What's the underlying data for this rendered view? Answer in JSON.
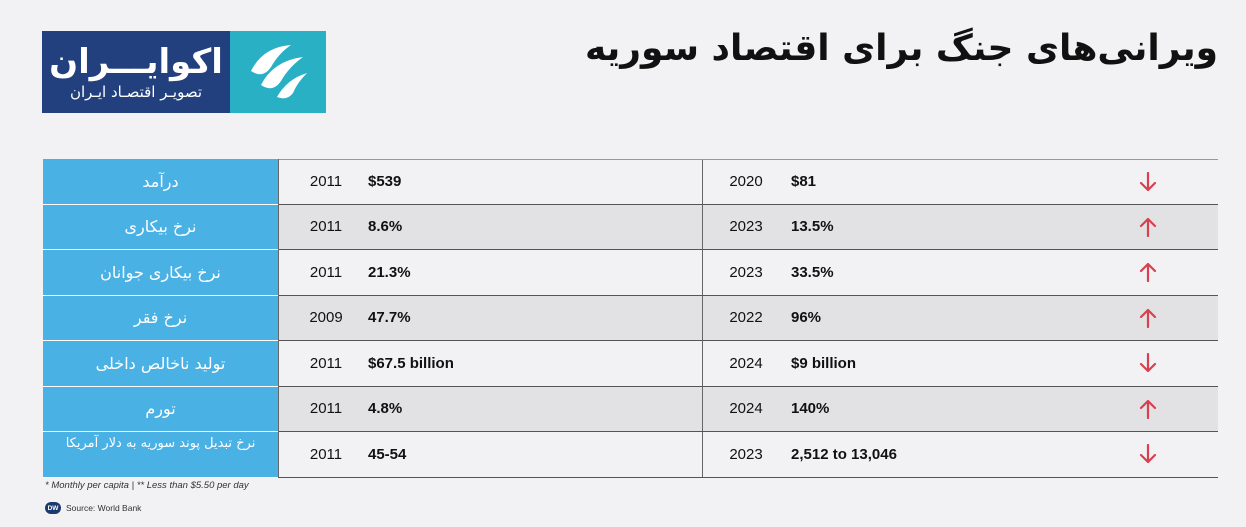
{
  "logo": {
    "name": "اکوایـــران",
    "subtitle": "تصویـر اقتصـاد ایـران"
  },
  "title": "ویرانی‌های جنگ برای اقتصاد سوریه",
  "colors": {
    "label_bg": "#4ab1e5",
    "arrow": "#d8404f",
    "logo_blue": "#23407e",
    "logo_teal": "#2ab0c5"
  },
  "rows": [
    {
      "label": "درآمد",
      "year1": "2011",
      "value1": "$539",
      "year2": "2020",
      "value2": "$81",
      "trend": "down"
    },
    {
      "label": "نرخ بیکاری",
      "year1": "2011",
      "value1": "8.6%",
      "year2": "2023",
      "value2": "13.5%",
      "trend": "up"
    },
    {
      "label": "نرخ بیکاری جوانان",
      "year1": "2011",
      "value1": "21.3%",
      "year2": "2023",
      "value2": "33.5%",
      "trend": "up"
    },
    {
      "label": "نرخ فقر",
      "year1": "2009",
      "value1": "47.7%",
      "year2": "2022",
      "value2": "96%",
      "trend": "up"
    },
    {
      "label": "تولید ناخالص داخلی",
      "year1": "2011",
      "value1": "$67.5 billion",
      "year2": "2024",
      "value2": "$9 billion",
      "trend": "down"
    },
    {
      "label": "تورم",
      "year1": "2011",
      "value1": "4.8%",
      "year2": "2024",
      "value2": "140%",
      "trend": "up"
    },
    {
      "label": "نرخ تبدیل پوند سوریه به دلار آمریکا",
      "year1": "2011",
      "value1": "45-54",
      "year2": "2023",
      "value2": "2,512 to 13,046",
      "trend": "down"
    }
  ],
  "footnote": "* Monthly per capita | ** Less than $5.50 per day",
  "source": {
    "badge": "DW",
    "text": "Source: World Bank"
  }
}
